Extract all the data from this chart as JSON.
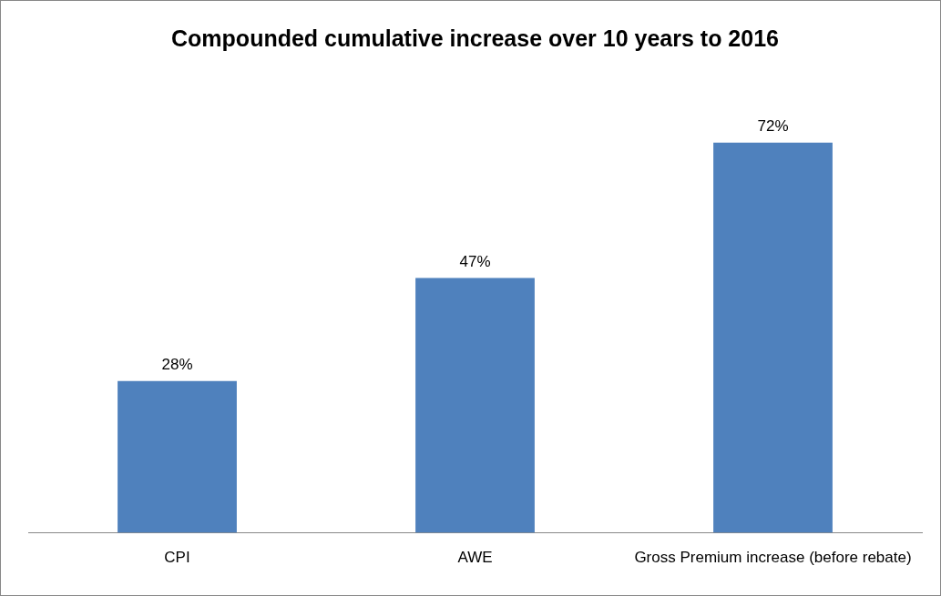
{
  "chart_data": {
    "type": "bar",
    "title": "Compounded cumulative increase over 10 years to 2016",
    "categories": [
      "CPI",
      "AWE",
      "Gross Premium increase (before rebate)"
    ],
    "values": [
      28,
      47,
      72
    ],
    "color": "#4f81bd",
    "value_labels": [
      "28%",
      "47%",
      "72%"
    ],
    "grid": false,
    "legend": false,
    "tick_labels": "x"
  }
}
